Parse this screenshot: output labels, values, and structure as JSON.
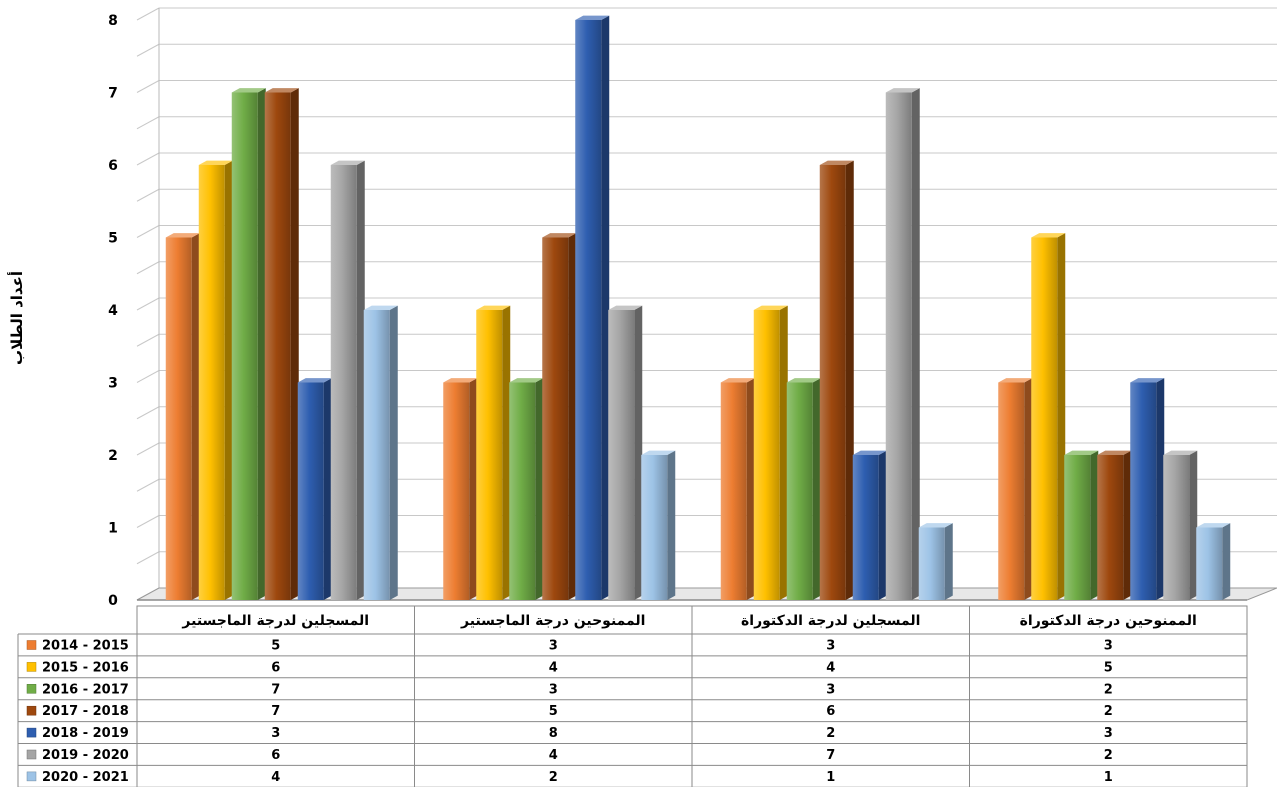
{
  "chart_data": {
    "type": "bar",
    "ylabel": "أعداد الطلاب",
    "ylim": [
      0,
      8
    ],
    "y_ticks": [
      "0",
      "1",
      "2",
      "3",
      "4",
      "5",
      "6",
      "7",
      "8"
    ],
    "grid": true,
    "legend_placement": "data-table-left",
    "categories": [
      "المسجلين لدرجة الماجستير",
      "الممنوحين درجة الماجستير",
      "المسجلين لدرجة الدكتوراة",
      "الممنوحين درجة الدكتوراة"
    ],
    "series": [
      {
        "name": "2014 - 2015",
        "color": "#ED7D31",
        "values": [
          5,
          3,
          3,
          3
        ]
      },
      {
        "name": "2015 - 2016",
        "color": "#FFC000",
        "values": [
          6,
          4,
          4,
          5
        ]
      },
      {
        "name": "2016 - 2017",
        "color": "#70AD47",
        "values": [
          7,
          3,
          3,
          2
        ]
      },
      {
        "name": "2017 - 2018",
        "color": "#9E480E",
        "values": [
          7,
          5,
          6,
          2
        ]
      },
      {
        "name": "2018 - 2019",
        "color": "#2E5EB0",
        "values": [
          3,
          8,
          2,
          3
        ]
      },
      {
        "name": "2019 - 2020",
        "color": "#A5A5A5",
        "values": [
          6,
          4,
          7,
          2
        ]
      },
      {
        "name": "2020 - 2021",
        "color": "#9DC3E6",
        "values": [
          4,
          2,
          1,
          1
        ]
      }
    ]
  }
}
